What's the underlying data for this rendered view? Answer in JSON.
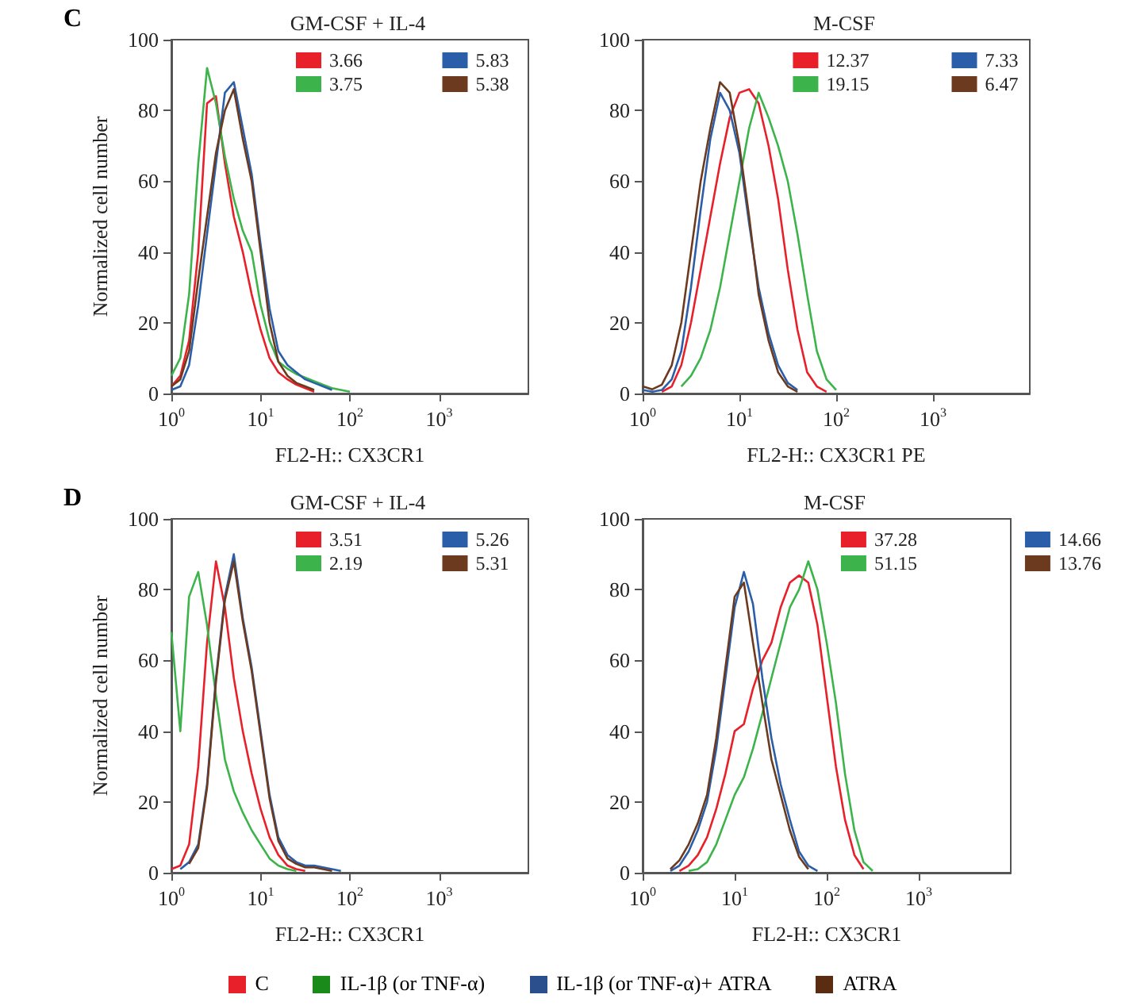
{
  "chart_data": [
    {
      "type": "line",
      "title": "GM-CSF + IL-4",
      "xlabel": "FL2-H:: CX3CR1",
      "ylabel": "Normalized cell number",
      "annotations": [
        "C"
      ],
      "legend": "top right",
      "grid": false,
      "log": "x",
      "xlim": [
        1,
        10000
      ],
      "xticks": [
        {
          "value": 1,
          "label": "10$^{0}$"
        },
        {
          "value": 10,
          "label": "10$^{1}$"
        },
        {
          "value": 100,
          "label": "10$^{2}$"
        },
        {
          "value": 1000,
          "label": "10$^{3}$"
        }
      ],
      "ylim": [
        0,
        100
      ],
      "yticks": [
        0,
        20,
        40,
        60,
        80,
        100
      ],
      "x": [
        1,
        1.26,
        1.58,
        2,
        2.51,
        3.16,
        3.98,
        5.01,
        6.31,
        7.94,
        10,
        12.6,
        15.8,
        20,
        25.1,
        31.6,
        39.8,
        50.1,
        63.1,
        79.4,
        100
      ],
      "series": [
        {
          "name": "3.66",
          "color": "#e8202a",
          "values": [
            2,
            5,
            15,
            40,
            82,
            84,
            65,
            50,
            40,
            28,
            18,
            10,
            6,
            4,
            2.5,
            1.5,
            0.5,
            null,
            null,
            null,
            null
          ]
        },
        {
          "name": "3.75",
          "color": "#3cb44b",
          "values": [
            5,
            10,
            28,
            65,
            92,
            82,
            67,
            55,
            46,
            40,
            25,
            15,
            9,
            7,
            5.5,
            4.5,
            3.5,
            2.5,
            1.5,
            1,
            0.5
          ]
        },
        {
          "name": "5.83",
          "color": "#2a5ea8",
          "values": [
            1,
            2,
            8,
            25,
            45,
            65,
            85,
            88,
            75,
            62,
            42,
            24,
            12,
            8,
            6,
            4,
            3,
            2,
            1,
            null,
            null
          ]
        },
        {
          "name": "5.38",
          "color": "#6b3a1f",
          "values": [
            2,
            4,
            12,
            32,
            50,
            68,
            80,
            86,
            72,
            60,
            40,
            20,
            9,
            5,
            3,
            2,
            1,
            null,
            null,
            null,
            null
          ]
        }
      ]
    },
    {
      "type": "line",
      "title": "M-CSF",
      "xlabel": "FL2-H:: CX3CR1 PE",
      "legend": "top right",
      "grid": false,
      "log": "x",
      "xlim": [
        1,
        10000
      ],
      "xticks": [
        {
          "value": 1,
          "label": "10$^{0}$"
        },
        {
          "value": 10,
          "label": "10$^{1}$"
        },
        {
          "value": 100,
          "label": "10$^{2}$"
        },
        {
          "value": 1000,
          "label": "10$^{3}$"
        }
      ],
      "ylim": [
        0,
        100
      ],
      "yticks": [
        0,
        20,
        40,
        60,
        80,
        100
      ],
      "x": [
        1,
        1.26,
        1.58,
        2,
        2.51,
        3.16,
        3.98,
        5.01,
        6.31,
        7.94,
        10,
        12.6,
        15.8,
        20,
        25.1,
        31.6,
        39.8,
        50.1,
        63.1,
        79.4,
        100
      ],
      "series": [
        {
          "name": "12.37",
          "color": "#e8202a",
          "values": [
            null,
            null,
            0.5,
            2,
            8,
            20,
            35,
            50,
            65,
            78,
            85,
            86,
            82,
            70,
            55,
            35,
            18,
            6,
            2,
            0.5,
            null
          ]
        },
        {
          "name": "19.15",
          "color": "#3cb44b",
          "values": [
            null,
            null,
            null,
            null,
            2,
            5,
            10,
            18,
            30,
            45,
            60,
            75,
            85,
            78,
            70,
            60,
            45,
            28,
            12,
            4,
            1
          ]
        },
        {
          "name": "7.33",
          "color": "#2a5ea8",
          "values": [
            1,
            0.5,
            1,
            4,
            12,
            30,
            52,
            72,
            85,
            80,
            68,
            48,
            30,
            17,
            8,
            3,
            1,
            null,
            null,
            null,
            null
          ]
        },
        {
          "name": "6.47",
          "color": "#6b3a1f",
          "values": [
            2,
            1.2,
            2.5,
            8,
            20,
            40,
            60,
            75,
            88,
            85,
            70,
            50,
            28,
            15,
            6,
            2,
            0.5,
            null,
            null,
            null,
            null
          ]
        }
      ]
    },
    {
      "type": "line",
      "title": "GM-CSF + IL-4",
      "xlabel": "FL2-H:: CX3CR1",
      "ylabel": "Normalized cell number",
      "annotations": [
        "D"
      ],
      "legend": "top right",
      "grid": false,
      "log": "x",
      "xlim": [
        1,
        10000
      ],
      "xticks": [
        {
          "value": 1,
          "label": "10$^{0}$"
        },
        {
          "value": 10,
          "label": "10$^{1}$"
        },
        {
          "value": 100,
          "label": "10$^{2}$"
        },
        {
          "value": 1000,
          "label": "10$^{3}$"
        }
      ],
      "ylim": [
        0,
        100
      ],
      "yticks": [
        0,
        20,
        40,
        60,
        80,
        100
      ],
      "x": [
        1,
        1.26,
        1.58,
        2,
        2.51,
        3.16,
        3.98,
        5.01,
        6.31,
        7.94,
        10,
        12.6,
        15.8,
        20,
        25.1,
        31.6,
        39.8,
        50.1,
        63.1,
        79.4
      ],
      "series": [
        {
          "name": "3.51",
          "color": "#e8202a",
          "values": [
            1,
            2,
            8,
            30,
            65,
            88,
            75,
            55,
            40,
            28,
            18,
            10,
            5,
            2,
            1,
            0.5,
            null,
            null,
            null,
            null
          ]
        },
        {
          "name": "2.19",
          "color": "#3cb44b",
          "values": [
            68,
            40,
            78,
            85,
            70,
            50,
            32,
            23,
            17,
            12,
            8,
            4,
            2,
            1,
            0.5,
            null,
            null,
            null,
            null,
            null
          ]
        },
        {
          "name": "5.26",
          "color": "#2a5ea8",
          "values": [
            null,
            1,
            3,
            8,
            25,
            55,
            78,
            90,
            72,
            58,
            40,
            22,
            10,
            5,
            3,
            2,
            2,
            1.5,
            1,
            0.5
          ]
        },
        {
          "name": "5.31",
          "color": "#6b3a1f",
          "values": [
            null,
            null,
            2.5,
            7,
            24,
            54,
            77,
            88,
            71,
            57,
            39,
            21,
            9,
            4,
            2.5,
            1.5,
            1.5,
            1,
            0.5,
            null
          ]
        }
      ]
    },
    {
      "type": "line",
      "title": "M-CSF",
      "xlabel": "FL2-H:: CX3CR1",
      "legend": "top right",
      "grid": false,
      "log": "x",
      "xlim": [
        1,
        10000
      ],
      "xticks": [
        {
          "value": 1,
          "label": "10$^{0}$"
        },
        {
          "value": 10,
          "label": "10$^{1}$"
        },
        {
          "value": 100,
          "label": "10$^{2}$"
        },
        {
          "value": 1000,
          "label": "10$^{3}$"
        }
      ],
      "ylim": [
        0,
        100
      ],
      "yticks": [
        0,
        20,
        40,
        60,
        80,
        100
      ],
      "x": [
        2,
        2.51,
        3.16,
        3.98,
        5.01,
        6.31,
        7.94,
        10,
        12.6,
        15.8,
        20,
        25.1,
        31.6,
        39.8,
        50.1,
        63.1,
        79.4,
        100,
        126,
        158,
        200,
        251,
        316
      ],
      "series": [
        {
          "name": "37.28",
          "color": "#e8202a",
          "values": [
            null,
            0.5,
            2,
            5,
            10,
            18,
            28,
            40,
            42,
            52,
            60,
            65,
            75,
            82,
            84,
            82,
            70,
            50,
            30,
            15,
            5,
            1,
            null
          ]
        },
        {
          "name": "51.15",
          "color": "#3cb44b",
          "values": [
            null,
            null,
            0.5,
            1,
            3,
            8,
            15,
            22,
            27,
            35,
            45,
            55,
            65,
            75,
            80,
            88,
            80,
            65,
            48,
            28,
            12,
            3,
            0.5
          ]
        },
        {
          "name": "14.66",
          "color": "#2a5ea8",
          "values": [
            0.5,
            2,
            6,
            12,
            20,
            35,
            55,
            75,
            85,
            76,
            55,
            38,
            25,
            15,
            6,
            2,
            0.5,
            null,
            null,
            null,
            null,
            null,
            null
          ]
        },
        {
          "name": "13.76",
          "color": "#6b3a1f",
          "values": [
            1,
            3.5,
            8,
            14,
            22,
            38,
            58,
            78,
            82,
            65,
            48,
            32,
            22,
            12,
            4.5,
            1,
            null,
            null,
            null,
            null,
            null,
            null,
            null
          ]
        }
      ]
    },
    {
      "type": "other",
      "legend": "bottom",
      "series": [
        {
          "name": "C",
          "color": "#e8202a"
        },
        {
          "name": "IL-1β (or TNF-α)",
          "color": "#1a8a1a"
        },
        {
          "name": "IL-1β (or TNF-α)+ ATRA",
          "color": "#2a4f8c"
        },
        {
          "name": "ATRA",
          "color": "#5a2c12"
        }
      ]
    }
  ]
}
